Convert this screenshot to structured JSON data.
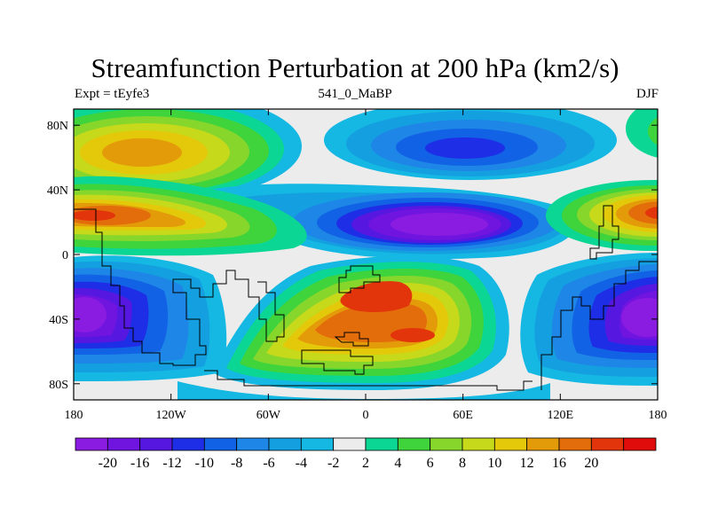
{
  "title": "Streamfunction Perturbation at 200 hPa (km2/s)",
  "left_label": "Expt = tEyfe3",
  "center_label": "541_0_MaBP",
  "right_label": "DJF",
  "lat_ticks": [
    {
      "value": 80,
      "label": "80N"
    },
    {
      "value": 40,
      "label": "40N"
    },
    {
      "value": 0,
      "label": "0"
    },
    {
      "value": -40,
      "label": "40S"
    },
    {
      "value": -80,
      "label": "80S"
    }
  ],
  "lon_ticks": [
    {
      "value": -180,
      "label": "180"
    },
    {
      "value": -120,
      "label": "120W"
    },
    {
      "value": -60,
      "label": "60W"
    },
    {
      "value": 0,
      "label": "0"
    },
    {
      "value": 60,
      "label": "60E"
    },
    {
      "value": 120,
      "label": "120E"
    },
    {
      "value": 180,
      "label": "180"
    }
  ],
  "colorbar": {
    "colors": [
      "#8a1be0",
      "#6f15df",
      "#5618e0",
      "#1e2ee6",
      "#1262e6",
      "#1e86e6",
      "#14a0e0",
      "#14b8e2",
      "#ececec",
      "#0cd693",
      "#3fd43c",
      "#86d62c",
      "#c6d91a",
      "#e4c90a",
      "#e39b09",
      "#e46d0b",
      "#e2350b",
      "#e00b0b"
    ],
    "labels": [
      "-20",
      "-16",
      "-12",
      "-10",
      "-8",
      "-6",
      "-4",
      "-2",
      "2",
      "4",
      "6",
      "8",
      "10",
      "12",
      "16",
      "20"
    ]
  }
}
